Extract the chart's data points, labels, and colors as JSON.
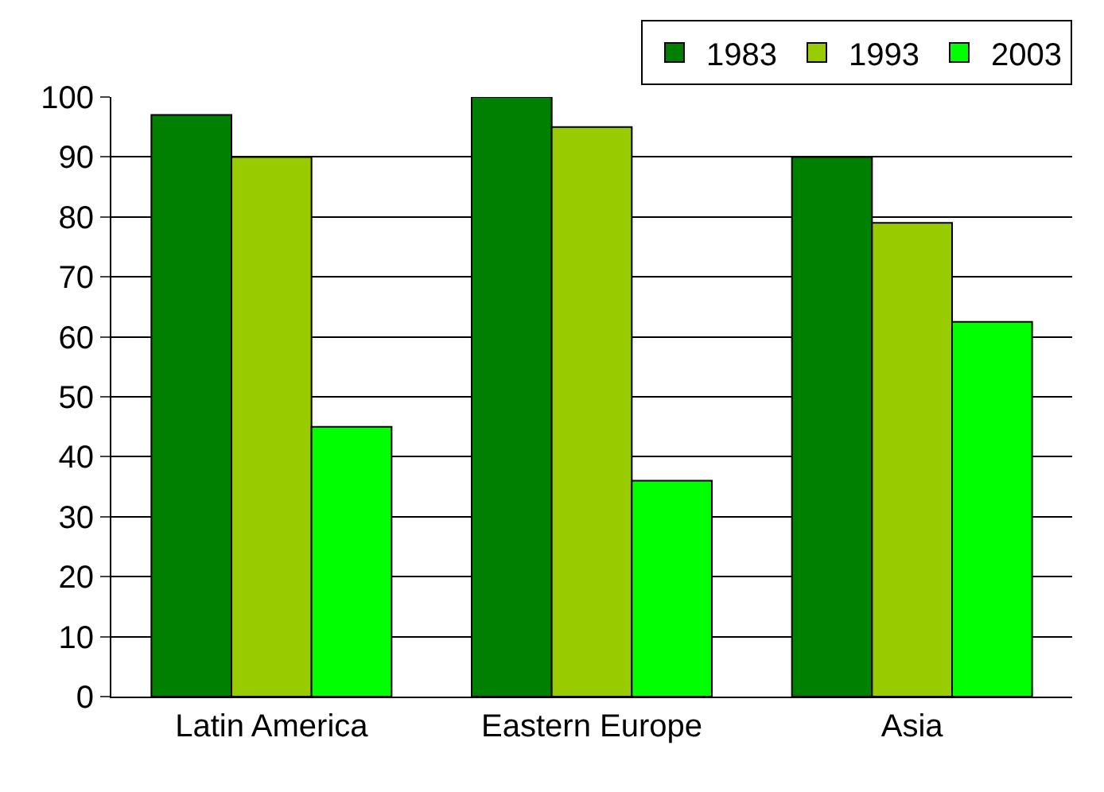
{
  "chart_data": {
    "type": "bar",
    "categories": [
      "Latin America",
      "Eastern Europe",
      "Asia"
    ],
    "series": [
      {
        "name": "1983",
        "color": "#008000",
        "values": [
          97,
          100,
          90
        ]
      },
      {
        "name": "1993",
        "color": "#99cc00",
        "values": [
          90,
          95,
          79
        ]
      },
      {
        "name": "2003",
        "color": "#00ff00",
        "values": [
          45,
          36,
          62.5
        ]
      }
    ],
    "ylim": [
      0,
      100
    ],
    "yticks": [
      0,
      10,
      20,
      30,
      40,
      50,
      60,
      70,
      80,
      90,
      100
    ],
    "grid": "y",
    "legend": "top right"
  }
}
